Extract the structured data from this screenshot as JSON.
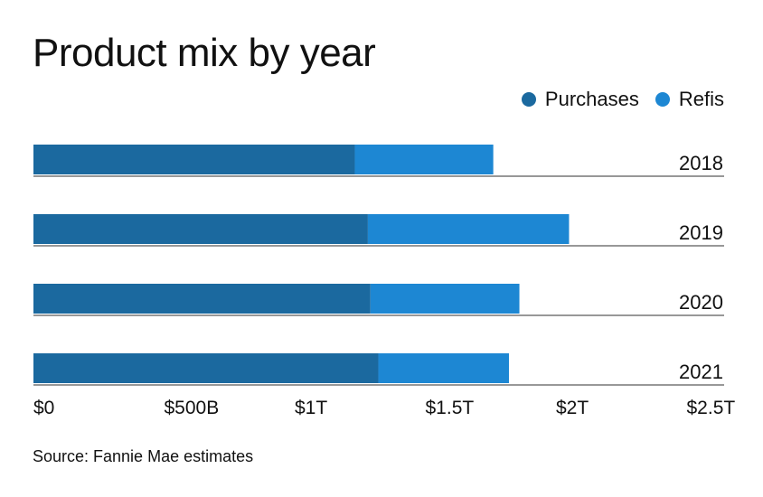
{
  "chart_data": {
    "type": "bar",
    "orientation": "horizontal",
    "stacked": true,
    "title": "Product mix by year",
    "categories": [
      "2018",
      "2019",
      "2020",
      "2021"
    ],
    "series": [
      {
        "name": "Purchases",
        "color": "#1b699f",
        "values": [
          1.23,
          1.28,
          1.29,
          1.32
        ]
      },
      {
        "name": "Refis",
        "color": "#1d87d3",
        "values": [
          0.53,
          0.77,
          0.57,
          0.5
        ]
      }
    ],
    "unit": "trillions USD",
    "xlim": [
      0,
      2.5
    ],
    "xticks": [
      0,
      0.5,
      1,
      1.5,
      2,
      2.5
    ],
    "xtick_labels": [
      "$0",
      "$500B",
      "$1T",
      "$1.5T",
      "$2T",
      "$2.5T"
    ],
    "legend": "top-right",
    "grid": false
  },
  "source": "Source: Fannie Mae estimates"
}
